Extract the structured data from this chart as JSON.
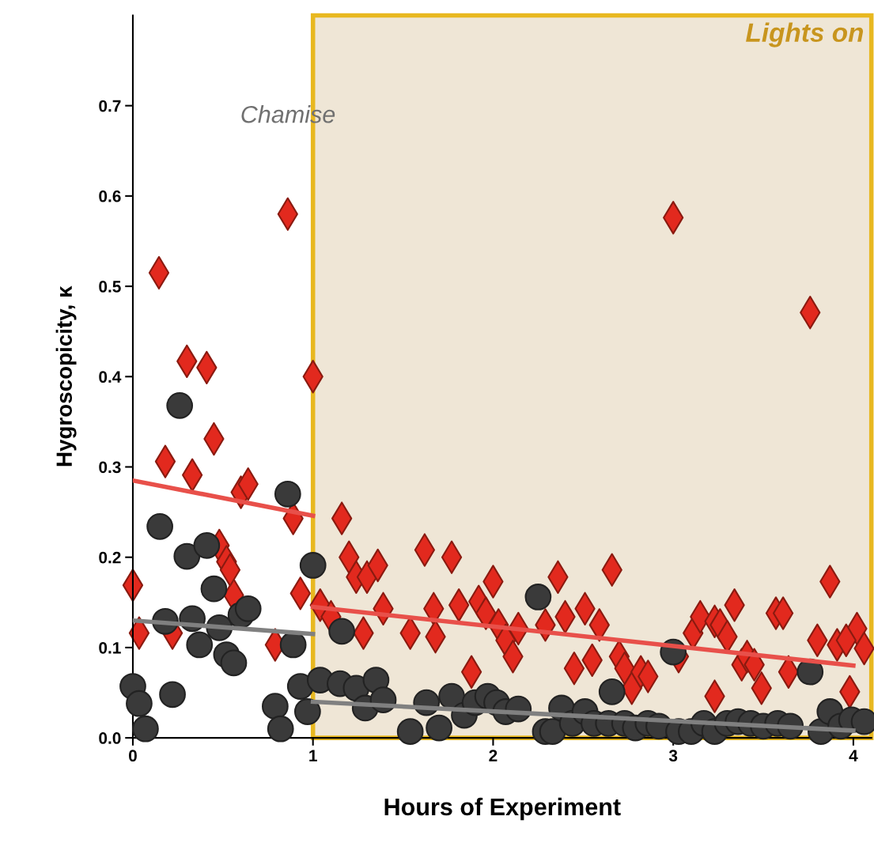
{
  "chart_data": {
    "type": "scatter",
    "xlabel": "Hours of Experiment",
    "ylabel": "Hygroscopicity, κ",
    "xlim": [
      0,
      4.1
    ],
    "ylim": [
      0,
      0.8
    ],
    "xticks": [
      0,
      1,
      2,
      3,
      4
    ],
    "yticks": [
      {
        "value": 0,
        "label": "0.0"
      },
      0.1,
      0.2,
      0.3,
      0.4,
      0.5,
      0.6,
      0.7
    ],
    "grid": false,
    "legend": false,
    "annotations": [
      "Chamise"
    ],
    "bands": [
      {
        "axis": "x",
        "from": 1,
        "to": 4.1,
        "label": "Lights on",
        "color": "#efe6d6"
      }
    ],
    "series": [
      {
        "marker": "diamond",
        "color": "#e2291e",
        "x": [
          0,
          0.035,
          0.145,
          0.18,
          0.22,
          0.3,
          0.33,
          0.41,
          0.45,
          0.48,
          0.52,
          0.56,
          0.6,
          0.64,
          0.54,
          0.79,
          0.86,
          0.89,
          0.93,
          1.0,
          1.04,
          1.1,
          1.16,
          1.2,
          1.24,
          1.3,
          1.36,
          1.39,
          1.28,
          1.54,
          1.62,
          1.67,
          1.68,
          1.77,
          1.81,
          1.88,
          1.92,
          1.96,
          2.0,
          2.03,
          2.07,
          2.11,
          2.14,
          2.29,
          2.36,
          2.4,
          2.45,
          2.51,
          2.55,
          2.59,
          2.66,
          2.7,
          2.73,
          2.77,
          2.82,
          2.86,
          3.0,
          3.03,
          3.11,
          3.15,
          3.23,
          3.23,
          3.26,
          3.3,
          3.34,
          3.38,
          3.41,
          3.45,
          3.49,
          3.57,
          3.61,
          3.64,
          3.76,
          3.8,
          3.87,
          3.91,
          3.98,
          4.02,
          4.06,
          3.96
        ],
        "values": [
          0.169,
          0.116,
          0.515,
          0.306,
          0.116,
          0.417,
          0.291,
          0.41,
          0.331,
          0.213,
          0.195,
          0.158,
          0.272,
          0.281,
          0.186,
          0.103,
          0.58,
          0.243,
          0.16,
          0.4,
          0.147,
          0.134,
          0.243,
          0.2,
          0.178,
          0.178,
          0.191,
          0.143,
          0.116,
          0.116,
          0.208,
          0.143,
          0.112,
          0.2,
          0.147,
          0.073,
          0.151,
          0.138,
          0.173,
          0.125,
          0.108,
          0.09,
          0.121,
          0.125,
          0.178,
          0.134,
          0.077,
          0.143,
          0.086,
          0.125,
          0.186,
          0.09,
          0.077,
          0.055,
          0.073,
          0.068,
          0.576,
          0.09,
          0.116,
          0.134,
          0.129,
          0.046,
          0.125,
          0.112,
          0.147,
          0.081,
          0.09,
          0.081,
          0.055,
          0.138,
          0.138,
          0.073,
          0.471,
          0.108,
          0.173,
          0.103,
          0.051,
          0.121,
          0.099,
          0.108
        ]
      },
      {
        "marker": "circle",
        "color": "#3a3a3a",
        "x": [
          0,
          0.035,
          0.07,
          0.15,
          0.18,
          0.22,
          0.26,
          0.3,
          0.33,
          0.37,
          0.41,
          0.45,
          0.48,
          0.52,
          0.56,
          0.6,
          0.64,
          0.79,
          0.82,
          0.86,
          0.89,
          0.93,
          0.97,
          1.0,
          1.04,
          1.16,
          1.15,
          1.24,
          1.29,
          1.35,
          1.39,
          1.54,
          1.63,
          1.7,
          1.77,
          1.84,
          1.9,
          1.97,
          2.02,
          2.07,
          2.14,
          2.25,
          2.29,
          2.33,
          2.38,
          2.44,
          2.51,
          2.56,
          2.66,
          2.64,
          2.73,
          2.79,
          2.86,
          2.92,
          3.0,
          3.03,
          3.1,
          3.17,
          3.23,
          3.3,
          3.36,
          3.43,
          3.5,
          3.58,
          3.65,
          3.76,
          3.82,
          3.87,
          3.93,
          3.99,
          4.06
        ],
        "values": [
          0.057,
          0.038,
          0.01,
          0.234,
          0.129,
          0.048,
          0.368,
          0.201,
          0.132,
          0.103,
          0.213,
          0.165,
          0.122,
          0.092,
          0.083,
          0.136,
          0.143,
          0.035,
          0.01,
          0.27,
          0.103,
          0.057,
          0.029,
          0.191,
          0.064,
          0.118,
          0.06,
          0.055,
          0.033,
          0.064,
          0.042,
          0.007,
          0.039,
          0.011,
          0.046,
          0.025,
          0.039,
          0.046,
          0.039,
          0.029,
          0.032,
          0.156,
          0.007,
          0.007,
          0.033,
          0.016,
          0.029,
          0.016,
          0.051,
          0.016,
          0.016,
          0.011,
          0.016,
          0.013,
          0.095,
          0.007,
          0.007,
          0.016,
          0.007,
          0.016,
          0.018,
          0.016,
          0.013,
          0.016,
          0.013,
          0.073,
          0.007,
          0.029,
          0.013,
          0.02,
          0.018
        ]
      },
      {
        "type": "line",
        "color": "#e8504a",
        "x": [
          0,
          1
        ],
        "values": [
          0.285,
          0.246
        ]
      },
      {
        "type": "line",
        "color": "#e8504a",
        "x": [
          1,
          4
        ],
        "values": [
          0.145,
          0.08
        ]
      },
      {
        "type": "line",
        "color": "#808080",
        "x": [
          0,
          1
        ],
        "values": [
          0.13,
          0.115
        ]
      },
      {
        "type": "line",
        "color": "#808080",
        "x": [
          1,
          4
        ],
        "values": [
          0.04,
          0.008
        ]
      }
    ]
  }
}
